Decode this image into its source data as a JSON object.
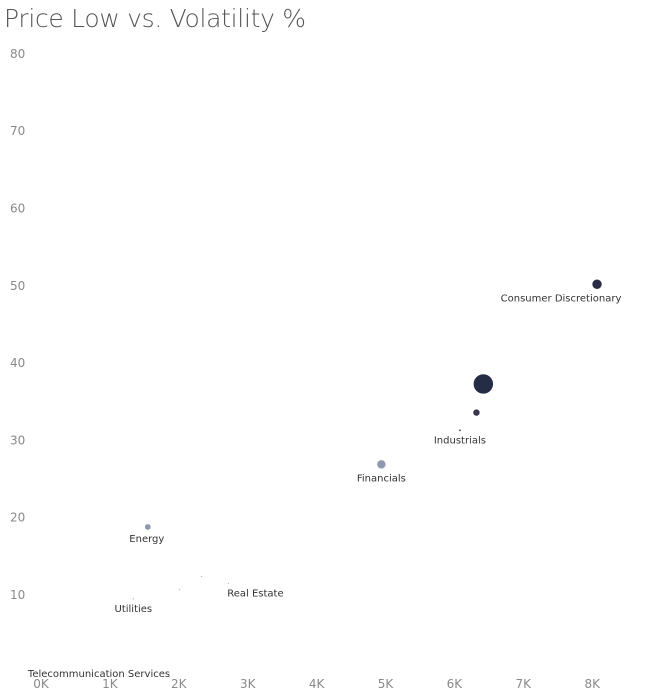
{
  "chart_data": {
    "type": "scatter",
    "title": "Price Low vs. Volatility %",
    "xlabel": "",
    "ylabel": "",
    "xlim": [
      0,
      8700
    ],
    "ylim": [
      2,
      80
    ],
    "x_ticks": [
      "0K",
      "1K",
      "2K",
      "3K",
      "4K",
      "5K",
      "6K",
      "7K",
      "8K"
    ],
    "x_tick_values": [
      0,
      1000,
      2000,
      3000,
      4000,
      5000,
      6000,
      7000,
      8000
    ],
    "y_ticks": [
      "10",
      "20",
      "30",
      "40",
      "50",
      "60",
      "70",
      "80"
    ],
    "y_tick_values": [
      10,
      20,
      30,
      40,
      50,
      60,
      70,
      80
    ],
    "grid": false,
    "points": [
      {
        "label": "Consumer Discretionary",
        "x": 8070,
        "y": 50.2,
        "size": 5,
        "color": "#2b2d46"
      },
      {
        "label": "",
        "x": 6420,
        "y": 37.3,
        "size": 10,
        "color": "#252c45"
      },
      {
        "label": "",
        "x": 6320,
        "y": 33.6,
        "size": 3.5,
        "color": "#3a3550"
      },
      {
        "label": "Industrials",
        "x": 6080,
        "y": 31.3,
        "size": 1.2,
        "color": "#3a3550"
      },
      {
        "label": "Financials",
        "x": 4940,
        "y": 26.9,
        "size": 4.5,
        "color": "#8e99b0"
      },
      {
        "label": "Energy",
        "x": 1550,
        "y": 18.8,
        "size": 3.2,
        "color": "#8e99b0"
      },
      {
        "label": "",
        "x": 2330,
        "y": 12.4,
        "size": 1,
        "color": "#b4b9c8"
      },
      {
        "label": "Real Estate",
        "x": 2720,
        "y": 11.5,
        "size": 1,
        "color": "#b4b9c8"
      },
      {
        "label": "",
        "x": 2010,
        "y": 10.7,
        "size": 1,
        "color": "#b4b9c8"
      },
      {
        "label": "Utilities",
        "x": 1340,
        "y": 9.5,
        "size": 1,
        "color": "#b4b9c8"
      },
      {
        "label": "Telecommunication Services",
        "x": 0,
        "y": 2,
        "size": 0,
        "color": "#ffffff"
      }
    ]
  }
}
